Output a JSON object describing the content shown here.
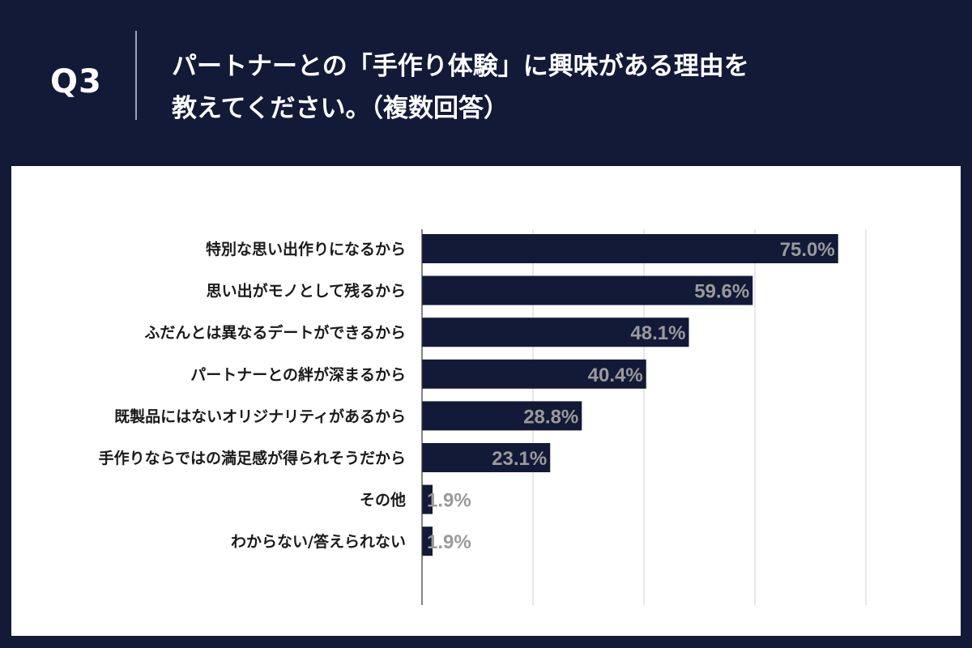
{
  "header": {
    "question_number": "Q3",
    "title_line1": "パートナーとの「手作り体験」に興味がある理由を",
    "title_line2": "教えてください。（複数回答）"
  },
  "colors": {
    "background": "#121a38",
    "bar": "#121a38",
    "value_label": "#9a9a9a",
    "grid": "#d0d0d0"
  },
  "chart_data": {
    "type": "bar",
    "orientation": "horizontal",
    "title": "パートナーとの「手作り体験」に興味がある理由を教えてください。（複数回答）",
    "categories": [
      "特別な思い出作りになるから",
      "思い出がモノとして残るから",
      "ふだんとは異なるデートができるから",
      "パートナーとの絆が深まるから",
      "既製品にはないオリジナリティがあるから",
      "手作りならではの満足感が得られそうだから",
      "その他",
      "わからない/答えられない"
    ],
    "values": [
      75.0,
      59.6,
      48.1,
      40.4,
      28.8,
      23.1,
      1.9,
      1.9
    ],
    "value_labels": [
      "75.0%",
      "59.6%",
      "48.1%",
      "40.4%",
      "28.8%",
      "23.1%",
      "1.9%",
      "1.9%"
    ],
    "xlim": [
      0,
      80
    ],
    "grid_step": 20,
    "grid": true,
    "xlabel": "",
    "ylabel": ""
  }
}
